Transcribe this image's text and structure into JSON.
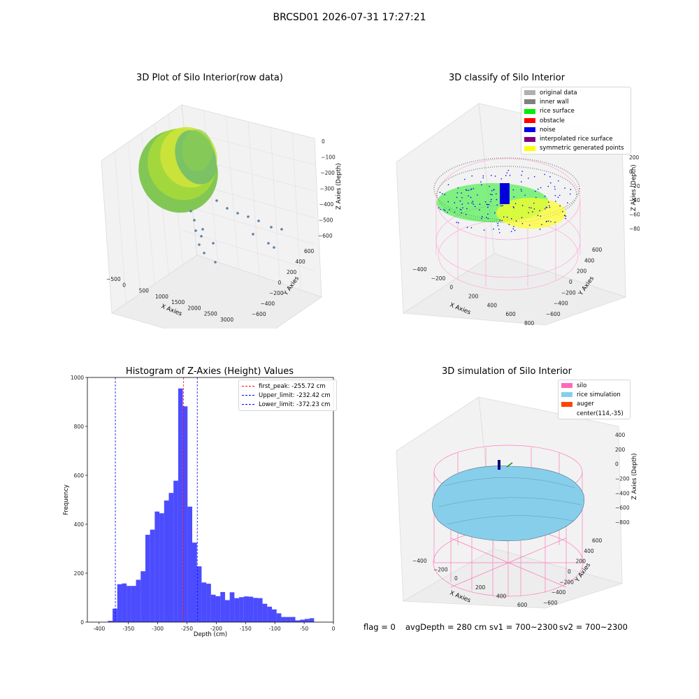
{
  "figure": {
    "suptitle": "BRCSD01 2026-07-31 17:27:21",
    "footer": {
      "flag": "flag = 0",
      "avg_depth": "avgDepth = 280 cm",
      "sv1": "sv1 = 700~2300",
      "sv2": "sv2 = 700~2300"
    }
  },
  "panels": {
    "raw": {
      "title": "3D Plot of Silo Interior(row data)",
      "xlabel": "X Axies",
      "ylabel": "Y Axies",
      "zlabel": "Z Axies (Depth)",
      "xticks": [
        "−500",
        "0",
        "500",
        "1000",
        "1500",
        "2000",
        "2500",
        "3000"
      ],
      "yticks": [
        "600",
        "400",
        "200",
        "0",
        "−200",
        "−400",
        "−600"
      ],
      "zticks": [
        "0",
        "−100",
        "−200",
        "−300",
        "−400",
        "−500",
        "−600"
      ]
    },
    "classify": {
      "title": "3D classify of Silo Interior",
      "xlabel": "X Axies",
      "ylabel": "Y Axies",
      "zlabel": "Z Axies (Depth)",
      "xticks": [
        "−400",
        "−200",
        "0",
        "200",
        "400",
        "600",
        "800"
      ],
      "yticks": [
        "600",
        "400",
        "200",
        "0",
        "−200",
        "−400",
        "−600"
      ],
      "zticks": [
        "200",
        "0",
        "−200",
        "−400",
        "−600",
        "−800"
      ],
      "legend": [
        {
          "label": "original data",
          "color": "#b0b0b0"
        },
        {
          "label": "inner wall",
          "color": "#808080"
        },
        {
          "label": "rice surface",
          "color": "#00ee00"
        },
        {
          "label": "obstacle",
          "color": "#ff0000"
        },
        {
          "label": "noise",
          "color": "#0000ee"
        },
        {
          "label": "interpolated rice surface",
          "color": "#800080"
        },
        {
          "label": "symmetric generated points",
          "color": "#ffff00"
        }
      ]
    },
    "simulation": {
      "title": "3D simulation of Silo Interior",
      "xlabel": "X Axies",
      "ylabel": "Y Axies",
      "zlabel": "Z Axies (Depth)",
      "xticks": [
        "−400",
        "−200",
        "0",
        "200",
        "400",
        "600"
      ],
      "yticks": [
        "600",
        "400",
        "200",
        "0",
        "−200",
        "−400",
        "−600"
      ],
      "zticks": [
        "400",
        "200",
        "0",
        "−200",
        "−400",
        "−600",
        "−800"
      ],
      "legend": [
        {
          "label": "silo",
          "color": "#ff69b4"
        },
        {
          "label": "rice simulation",
          "color": "#87ceeb"
        },
        {
          "label": "auger",
          "color": "#ff4500"
        },
        {
          "label": "center(114,-35)",
          "color": "none"
        }
      ]
    }
  },
  "chart_data": [
    {
      "type": "bar",
      "title": "Histogram of Z-Axies (Height) Values",
      "xlabel": "Depth (cm)",
      "ylabel": "Frequency",
      "xlim": [
        -420,
        0
      ],
      "ylim": [
        0,
        1000
      ],
      "xticks": [
        -400,
        -350,
        -300,
        -250,
        -200,
        -150,
        -100,
        -50,
        0
      ],
      "yticks": [
        0,
        200,
        400,
        600,
        800,
        1000
      ],
      "bar_color": "#0000ff",
      "bin_edges": [
        -385,
        -377,
        -369,
        -361,
        -353,
        -345,
        -337,
        -329,
        -321,
        -313,
        -305,
        -297,
        -289,
        -281,
        -273,
        -265,
        -257,
        -249,
        -241,
        -233,
        -225,
        -217,
        -209,
        -201,
        -193,
        -185,
        -177,
        -169,
        -161,
        -153,
        -145,
        -137,
        -129,
        -121,
        -113,
        -105,
        -97,
        -89,
        -81,
        -73,
        -65,
        -57,
        -49,
        -41,
        -33,
        -25,
        -17
      ],
      "values": [
        5,
        55,
        155,
        158,
        148,
        148,
        173,
        208,
        357,
        378,
        452,
        445,
        497,
        528,
        578,
        955,
        882,
        472,
        325,
        228,
        162,
        157,
        112,
        106,
        123,
        90,
        122,
        98,
        102,
        105,
        104,
        99,
        98,
        75,
        63,
        52,
        36,
        21,
        21,
        21,
        7,
        10,
        13,
        16,
        0,
        0
      ],
      "vlines": [
        {
          "x": -255.72,
          "label": "first_peak: -255.72 cm",
          "color": "#ff0000"
        },
        {
          "x": -232.42,
          "label": "Upper_limit: -232.42 cm",
          "color": "#0000ff"
        },
        {
          "x": -372.23,
          "label": "Lower_limit: -372.23 cm",
          "color": "#0000ff"
        }
      ],
      "legend_position": "top-right"
    }
  ]
}
